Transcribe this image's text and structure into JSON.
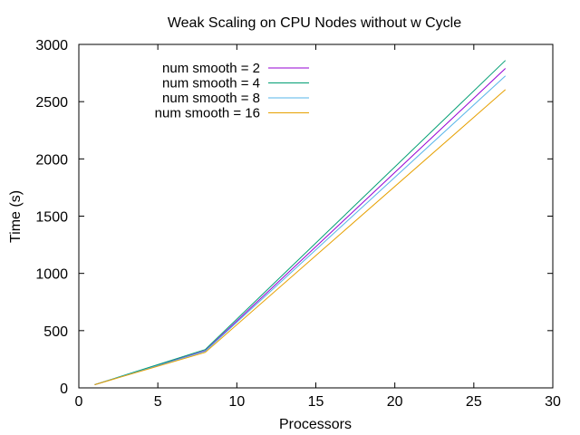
{
  "chart_data": {
    "type": "line",
    "title": "Weak Scaling on CPU Nodes without w Cycle",
    "xlabel": "Processors",
    "ylabel": "Time (s)",
    "xlim": [
      0,
      30
    ],
    "ylim": [
      0,
      3000
    ],
    "xticks": [
      "0",
      "5",
      "10",
      "15",
      "20",
      "25",
      "30"
    ],
    "yticks": [
      "0",
      "500",
      "1000",
      "1500",
      "2000",
      "2500",
      "3000"
    ],
    "grid": false,
    "legend_position": "top-left",
    "series": [
      {
        "name": "num smooth = 2",
        "color": "#9400d3",
        "x": [
          1,
          8,
          27
        ],
        "y": [
          28,
          325,
          2790
        ]
      },
      {
        "name": "num smooth = 4",
        "color": "#009e73",
        "x": [
          1,
          8,
          27
        ],
        "y": [
          28,
          335,
          2860
        ]
      },
      {
        "name": "num smooth = 8",
        "color": "#56b4e9",
        "x": [
          1,
          8,
          27
        ],
        "y": [
          28,
          320,
          2725
        ]
      },
      {
        "name": "num smooth = 16",
        "color": "#e6a000",
        "x": [
          1,
          8,
          27
        ],
        "y": [
          28,
          310,
          2605
        ]
      }
    ]
  }
}
